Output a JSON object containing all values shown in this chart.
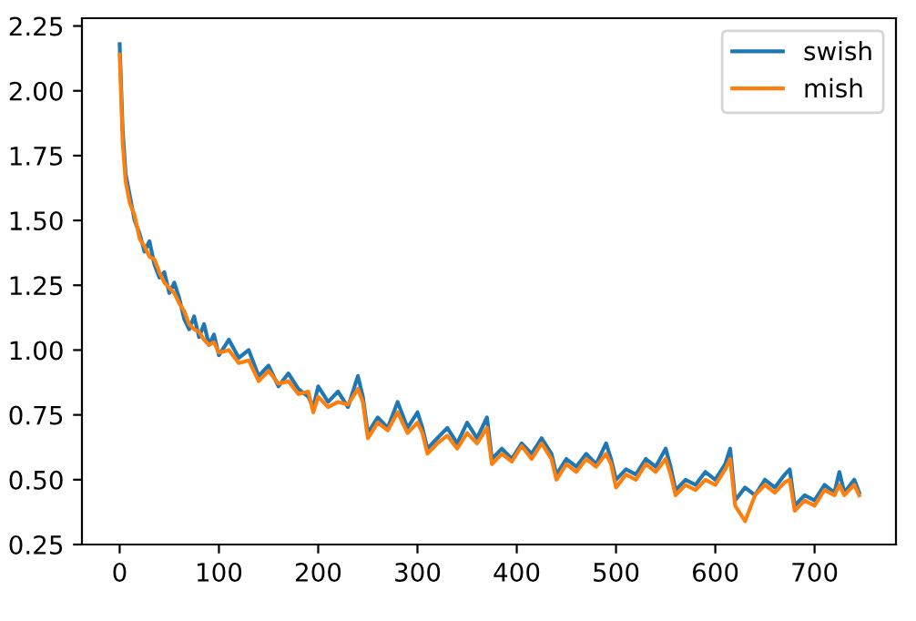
{
  "chart_data": {
    "type": "line",
    "x": [
      0,
      3,
      6,
      10,
      15,
      20,
      25,
      30,
      35,
      40,
      45,
      50,
      55,
      60,
      65,
      70,
      75,
      80,
      85,
      90,
      95,
      100,
      110,
      120,
      130,
      140,
      150,
      160,
      170,
      180,
      190,
      195,
      200,
      210,
      220,
      230,
      240,
      245,
      250,
      260,
      270,
      280,
      290,
      300,
      305,
      310,
      320,
      330,
      340,
      350,
      360,
      370,
      375,
      385,
      395,
      405,
      415,
      425,
      435,
      440,
      450,
      460,
      470,
      480,
      490,
      495,
      500,
      510,
      520,
      530,
      540,
      550,
      555,
      560,
      570,
      580,
      590,
      600,
      610,
      615,
      620,
      630,
      640,
      650,
      660,
      670,
      675,
      680,
      690,
      700,
      710,
      720,
      725,
      730,
      740,
      745
    ],
    "series": [
      {
        "name": "swish",
        "color": "#1f77b4",
        "values": [
          2.18,
          1.85,
          1.68,
          1.6,
          1.5,
          1.45,
          1.38,
          1.42,
          1.33,
          1.28,
          1.3,
          1.22,
          1.26,
          1.2,
          1.12,
          1.08,
          1.13,
          1.05,
          1.1,
          1.02,
          1.06,
          0.98,
          1.04,
          0.97,
          1.0,
          0.9,
          0.94,
          0.86,
          0.91,
          0.85,
          0.82,
          0.78,
          0.86,
          0.8,
          0.84,
          0.78,
          0.9,
          0.82,
          0.68,
          0.74,
          0.7,
          0.8,
          0.7,
          0.76,
          0.7,
          0.62,
          0.66,
          0.7,
          0.64,
          0.72,
          0.66,
          0.74,
          0.58,
          0.62,
          0.58,
          0.64,
          0.6,
          0.66,
          0.6,
          0.52,
          0.58,
          0.55,
          0.6,
          0.56,
          0.64,
          0.58,
          0.5,
          0.54,
          0.52,
          0.58,
          0.55,
          0.62,
          0.55,
          0.46,
          0.5,
          0.48,
          0.53,
          0.5,
          0.56,
          0.62,
          0.42,
          0.47,
          0.44,
          0.5,
          0.47,
          0.52,
          0.54,
          0.4,
          0.44,
          0.42,
          0.48,
          0.45,
          0.53,
          0.45,
          0.5,
          0.45
        ]
      },
      {
        "name": "mish",
        "color": "#ff7f0e",
        "values": [
          2.14,
          1.8,
          1.65,
          1.57,
          1.52,
          1.43,
          1.4,
          1.36,
          1.35,
          1.3,
          1.26,
          1.24,
          1.22,
          1.18,
          1.15,
          1.1,
          1.08,
          1.07,
          1.04,
          1.02,
          1.03,
          0.99,
          1.0,
          0.95,
          0.96,
          0.88,
          0.92,
          0.87,
          0.88,
          0.83,
          0.84,
          0.76,
          0.82,
          0.78,
          0.8,
          0.79,
          0.85,
          0.8,
          0.66,
          0.72,
          0.69,
          0.76,
          0.68,
          0.72,
          0.68,
          0.6,
          0.64,
          0.67,
          0.62,
          0.68,
          0.64,
          0.7,
          0.56,
          0.6,
          0.57,
          0.63,
          0.58,
          0.64,
          0.58,
          0.5,
          0.56,
          0.53,
          0.58,
          0.55,
          0.6,
          0.56,
          0.47,
          0.52,
          0.5,
          0.56,
          0.53,
          0.58,
          0.52,
          0.44,
          0.48,
          0.46,
          0.5,
          0.48,
          0.54,
          0.58,
          0.4,
          0.34,
          0.44,
          0.48,
          0.45,
          0.49,
          0.5,
          0.38,
          0.42,
          0.4,
          0.46,
          0.44,
          0.48,
          0.44,
          0.48,
          0.44
        ]
      }
    ],
    "xlim": [
      -38,
      782
    ],
    "ylim": [
      0.25,
      2.28
    ],
    "xticks": [
      0,
      100,
      200,
      300,
      400,
      500,
      600,
      700
    ],
    "yticks": [
      {
        "value": 0.25,
        "label": "0.25"
      },
      {
        "value": 0.5,
        "label": "0.50"
      },
      {
        "value": 0.75,
        "label": "0.75"
      },
      {
        "value": 1.0,
        "label": "1.00"
      },
      {
        "value": 1.25,
        "label": "1.25"
      },
      {
        "value": 1.5,
        "label": "1.50"
      },
      {
        "value": 1.75,
        "label": "1.75"
      },
      {
        "value": 2.0,
        "label": "2.00"
      },
      {
        "value": 2.25,
        "label": "2.25"
      }
    ],
    "legend": "top right"
  }
}
